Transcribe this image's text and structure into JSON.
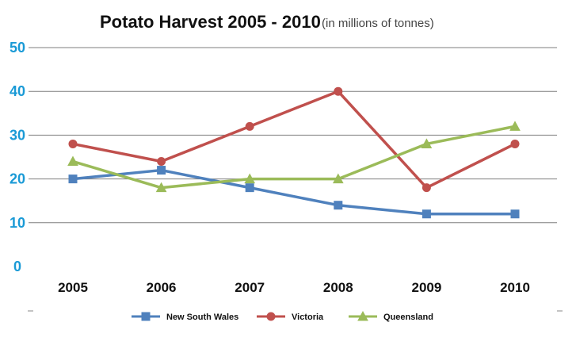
{
  "chart_data": {
    "type": "line",
    "title": "Potato Harvest 2005 - 2010",
    "subtitle": "(in millions of tonnes)",
    "categories": [
      "2005",
      "2006",
      "2007",
      "2008",
      "2009",
      "2010"
    ],
    "ylim": [
      0,
      50
    ],
    "yticks": [
      "0",
      "10",
      "20",
      "30",
      "40",
      "50"
    ],
    "grid": true,
    "legend": "bottom",
    "series": [
      {
        "name": "New South Wales",
        "values": [
          20,
          22,
          18,
          14,
          12,
          12
        ],
        "color": "#4f81bd",
        "marker": "square"
      },
      {
        "name": "Victoria",
        "values": [
          28,
          24,
          32,
          40,
          18,
          28
        ],
        "color": "#c0504d",
        "marker": "circle"
      },
      {
        "name": "Queensland",
        "values": [
          24,
          18,
          20,
          20,
          28,
          32
        ],
        "color": "#9bbb59",
        "marker": "triangle"
      }
    ]
  }
}
